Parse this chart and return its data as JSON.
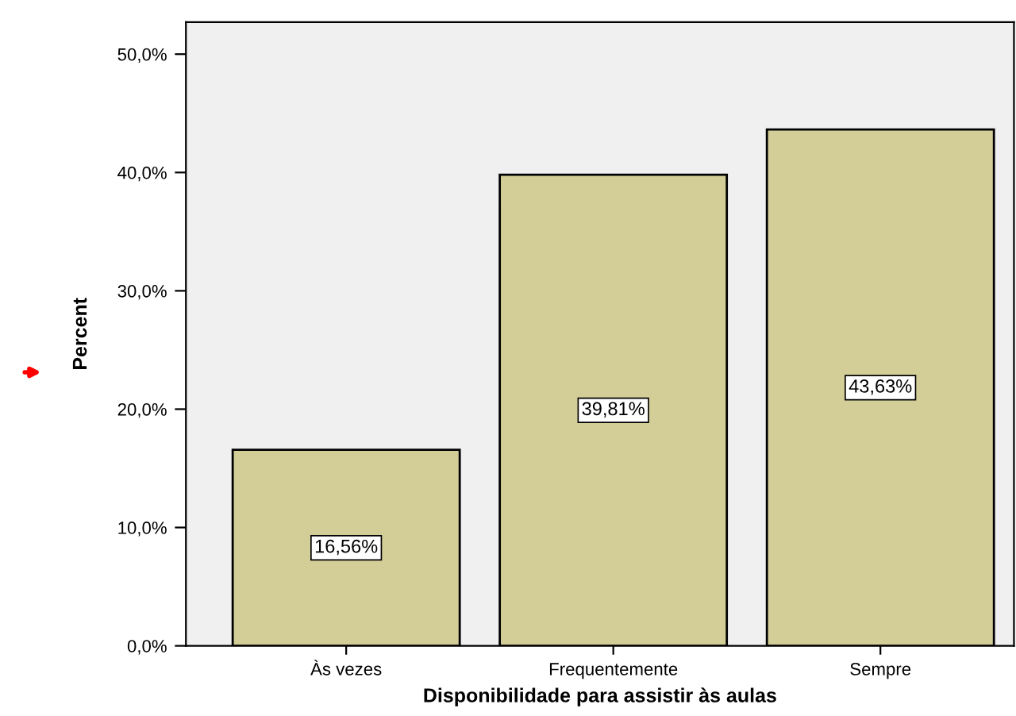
{
  "chart_data": {
    "type": "bar",
    "xlabel": "Disponibilidade para assistir às aulas",
    "ylabel": "Percent",
    "categories": [
      "Às vezes",
      "Frequentemente",
      "Sempre"
    ],
    "values": [
      16.56,
      39.81,
      43.63
    ],
    "value_labels": [
      "16,56%",
      "39,81%",
      "43,63%"
    ],
    "color": "#d3ce97",
    "ylim": [
      0,
      52.7
    ],
    "yticks": [
      {
        "value": 0,
        "label": "0,0%"
      },
      {
        "value": 10,
        "label": "10,0%"
      },
      {
        "value": 20,
        "label": "20,0%"
      },
      {
        "value": 30,
        "label": "30,0%"
      },
      {
        "value": 40,
        "label": "40,0%"
      },
      {
        "value": 50,
        "label": "50,0%"
      }
    ],
    "grid": false
  }
}
